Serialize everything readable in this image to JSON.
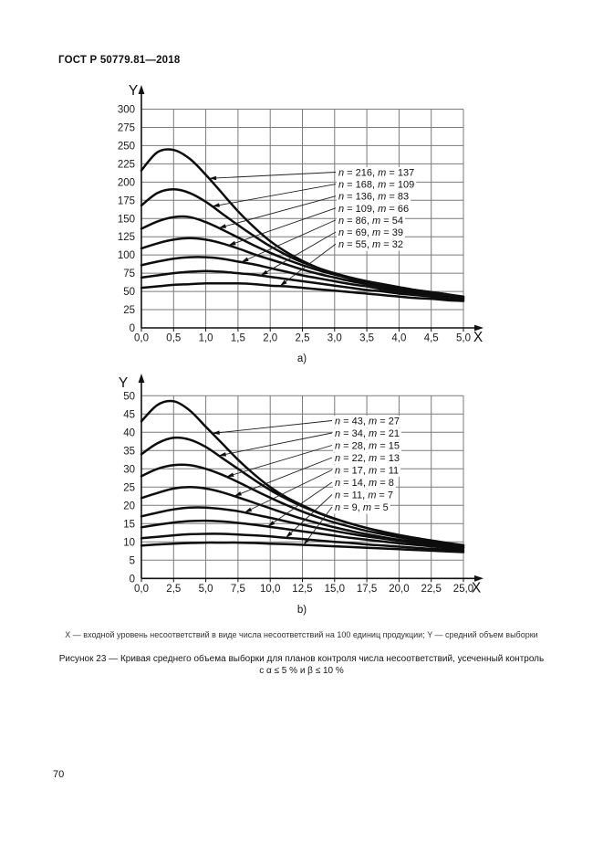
{
  "page": {
    "header": "ГОСТ Р 50779.81—2018",
    "page_number": "70",
    "footnote": "X — входной уровень несоответствий в виде числа несоответствий на 100 единиц продукции; Y — средний объем выборки",
    "figure_caption_line1": "Рисунок 23 — Кривая среднего объема выборки для планов контроля числа несоответствий, усеченный контроль",
    "figure_caption_line2": "с α ≤ 5 % и β ≤ 10 %"
  },
  "chart_data": [
    {
      "type": "line",
      "sublabel": "a)",
      "xlabel": "X",
      "ylabel": "Y",
      "xlim": [
        0,
        5
      ],
      "ylim": [
        0,
        300
      ],
      "grid": true,
      "legend_position": "inside-right",
      "x_tick_labels": [
        "0,0",
        "0,5",
        "1,0",
        "1,5",
        "2,0",
        "2,5",
        "3,0",
        "3,5",
        "4,0",
        "4,5",
        "5,0"
      ],
      "x_tick_values": [
        0,
        0.5,
        1,
        1.5,
        2,
        2.5,
        3,
        3.5,
        4,
        4.5,
        5
      ],
      "y_tick_labels": [
        "0",
        "25",
        "50",
        "75",
        "100",
        "125",
        "150",
        "175",
        "200",
        "225",
        "250",
        "275",
        "300"
      ],
      "y_tick_values": [
        0,
        25,
        50,
        75,
        100,
        125,
        150,
        175,
        200,
        225,
        250,
        275,
        300
      ],
      "x": [
        0,
        0.25,
        0.5,
        0.75,
        1,
        1.25,
        1.5,
        1.75,
        2,
        2.25,
        2.5,
        2.75,
        3,
        3.25,
        3.5,
        3.75,
        4,
        4.25,
        4.5,
        4.75,
        5
      ],
      "series": [
        {
          "label": "n = 216, m = 137",
          "n": 216,
          "m": 137,
          "label_anchor_x": 1.05,
          "y": [
            216,
            241,
            244,
            232,
            210,
            185,
            160,
            138,
            119,
            104,
            92,
            82,
            74,
            67,
            61,
            56,
            52,
            48,
            45,
            42,
            40
          ]
        },
        {
          "label": "n = 168, m = 109",
          "n": 168,
          "m": 109,
          "label_anchor_x": 1.1,
          "y": [
            168,
            185,
            190,
            185,
            173,
            157,
            141,
            126,
            112,
            100,
            90,
            82,
            75,
            69,
            64,
            60,
            56,
            52,
            49,
            46,
            43
          ]
        },
        {
          "label": "n = 136, m = 83",
          "n": 136,
          "m": 83,
          "label_anchor_x": 1.2,
          "y": [
            136,
            146,
            152,
            152,
            145,
            135,
            124,
            113,
            103,
            94,
            86,
            79,
            73,
            68,
            63,
            59,
            55,
            52,
            49,
            46,
            42
          ]
        },
        {
          "label": "n = 109, m = 66",
          "n": 109,
          "m": 66,
          "label_anchor_x": 1.35,
          "y": [
            109,
            116,
            121,
            123,
            121,
            116,
            109,
            101,
            94,
            87,
            80,
            74,
            69,
            64,
            60,
            56,
            53,
            50,
            47,
            44,
            41
          ]
        },
        {
          "label": "n = 86, m = 54",
          "n": 86,
          "m": 54,
          "label_anchor_x": 1.55,
          "y": [
            86,
            91,
            95,
            97,
            97,
            95,
            91,
            87,
            82,
            77,
            72,
            68,
            64,
            60,
            57,
            53,
            50,
            47,
            45,
            42,
            40
          ]
        },
        {
          "label": "n = 69, m = 39",
          "n": 69,
          "m": 39,
          "label_anchor_x": 1.85,
          "y": [
            69,
            72,
            75,
            77,
            78,
            77,
            75,
            73,
            70,
            67,
            64,
            61,
            58,
            55,
            52,
            50,
            47,
            45,
            43,
            40,
            38
          ]
        },
        {
          "label": "n = 55, m = 32",
          "n": 55,
          "m": 32,
          "label_anchor_x": 2.15,
          "y": [
            55,
            57,
            59,
            60,
            61,
            61,
            61,
            60,
            58,
            57,
            55,
            53,
            51,
            49,
            47,
            45,
            43,
            41,
            40,
            38,
            37
          ]
        }
      ]
    },
    {
      "type": "line",
      "sublabel": "b)",
      "xlabel": "X",
      "ylabel": "Y",
      "xlim": [
        0,
        25
      ],
      "ylim": [
        0,
        50
      ],
      "grid": true,
      "legend_position": "inside-right",
      "x_tick_labels": [
        "0,0",
        "2,5",
        "5,0",
        "7,5",
        "10,0",
        "12,5",
        "15,0",
        "17,5",
        "20,0",
        "22,5",
        "25,0"
      ],
      "x_tick_values": [
        0,
        2.5,
        5,
        7.5,
        10,
        12.5,
        15,
        17.5,
        20,
        22.5,
        25
      ],
      "y_tick_labels": [
        "0",
        "5",
        "10",
        "15",
        "20",
        "25",
        "30",
        "35",
        "40",
        "45",
        "50"
      ],
      "y_tick_values": [
        0,
        5,
        10,
        15,
        20,
        25,
        30,
        35,
        40,
        45,
        50
      ],
      "x": [
        0,
        1.25,
        2.5,
        3.75,
        5,
        6.25,
        7.5,
        8.75,
        10,
        11.25,
        12.5,
        13.75,
        15,
        16.25,
        17.5,
        18.75,
        20,
        21.25,
        22.5,
        23.75,
        25
      ],
      "series": [
        {
          "label": "n = 43, m = 27",
          "n": 43,
          "m": 27,
          "label_anchor_x": 5.5,
          "y": [
            43,
            47.5,
            48.5,
            46,
            41.5,
            37,
            32.5,
            28.5,
            25,
            22.2,
            20,
            18,
            16.4,
            15,
            13.8,
            12.8,
            11.9,
            11.1,
            10.4,
            9.7,
            9.1
          ]
        },
        {
          "label": "n = 34, m = 21",
          "n": 34,
          "m": 21,
          "label_anchor_x": 6.0,
          "y": [
            34,
            37,
            38.5,
            38,
            36,
            33,
            30,
            27,
            24.2,
            21.8,
            19.7,
            17.9,
            16.3,
            15,
            13.8,
            12.7,
            11.8,
            11,
            10.2,
            9.6,
            9
          ]
        },
        {
          "label": "n = 28, m = 15",
          "n": 28,
          "m": 15,
          "label_anchor_x": 6.6,
          "y": [
            28,
            30,
            31,
            31,
            30,
            28.4,
            26.4,
            24.2,
            22.1,
            20.1,
            18.3,
            16.7,
            15.3,
            14.1,
            13,
            12.1,
            11.3,
            10.5,
            9.9,
            9.3,
            8.8
          ]
        },
        {
          "label": "n = 22, m = 13",
          "n": 22,
          "m": 13,
          "label_anchor_x": 7.2,
          "y": [
            22,
            23.4,
            24.6,
            25,
            24.6,
            23.6,
            22.2,
            20.7,
            19.2,
            17.7,
            16.3,
            15.1,
            14,
            13,
            12.1,
            11.3,
            10.6,
            10,
            9.4,
            8.9,
            8.5
          ]
        },
        {
          "label": "n = 17, m = 11",
          "n": 17,
          "m": 11,
          "label_anchor_x": 8.0,
          "y": [
            17,
            18,
            18.9,
            19.4,
            19.4,
            19,
            18.4,
            17.5,
            16.6,
            15.6,
            14.7,
            13.8,
            13,
            12.2,
            11.5,
            10.9,
            10.3,
            9.7,
            9.2,
            8.8,
            8.4
          ]
        },
        {
          "label": "n = 14, m = 8",
          "n": 14,
          "m": 8,
          "label_anchor_x": 9.8,
          "y": [
            14,
            14.7,
            15.3,
            15.7,
            15.8,
            15.6,
            15.2,
            14.7,
            14.1,
            13.5,
            12.9,
            12.3,
            11.7,
            11.1,
            10.6,
            10.1,
            9.6,
            9.2,
            8.8,
            8.4,
            8.1
          ]
        },
        {
          "label": "n = 11, m = 7",
          "n": 11,
          "m": 7,
          "label_anchor_x": 11.2,
          "y": [
            11,
            11.4,
            11.8,
            12.1,
            12.2,
            12.2,
            12,
            11.8,
            11.5,
            11.1,
            10.8,
            10.4,
            10,
            9.7,
            9.3,
            9,
            8.7,
            8.4,
            8.1,
            7.9,
            7.6
          ]
        },
        {
          "label": "n = 9, m = 5",
          "n": 9,
          "m": 5,
          "label_anchor_x": 12.6,
          "y": [
            9,
            9.3,
            9.5,
            9.7,
            9.8,
            9.8,
            9.8,
            9.7,
            9.5,
            9.4,
            9.2,
            9,
            8.8,
            8.6,
            8.4,
            8.2,
            8,
            7.8,
            7.6,
            7.4,
            7.2
          ]
        }
      ]
    }
  ]
}
